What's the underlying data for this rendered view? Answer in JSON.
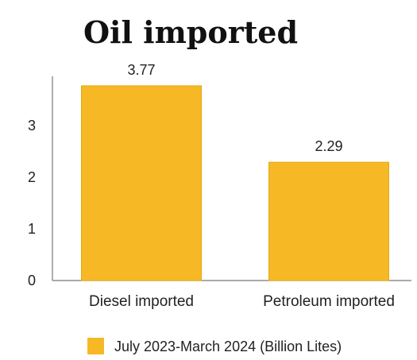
{
  "chart_data": {
    "type": "bar",
    "title": "Oil imported",
    "categories": [
      "Diesel imported",
      "Petroleum imported"
    ],
    "series": [
      {
        "name": "July 2023-March 2024 (Billion Lites)",
        "values": [
          3.77,
          2.29
        ],
        "value_labels": [
          "3.77",
          "2.29"
        ]
      }
    ],
    "yticks": [
      "0",
      "1",
      "2",
      "3"
    ],
    "ylim": [
      0,
      4
    ],
    "grid": false,
    "legend_position": "bottom",
    "xlabel": "",
    "ylabel": ""
  },
  "colors": {
    "bar": "#f6b925",
    "bar_edge": "#e4a817"
  }
}
